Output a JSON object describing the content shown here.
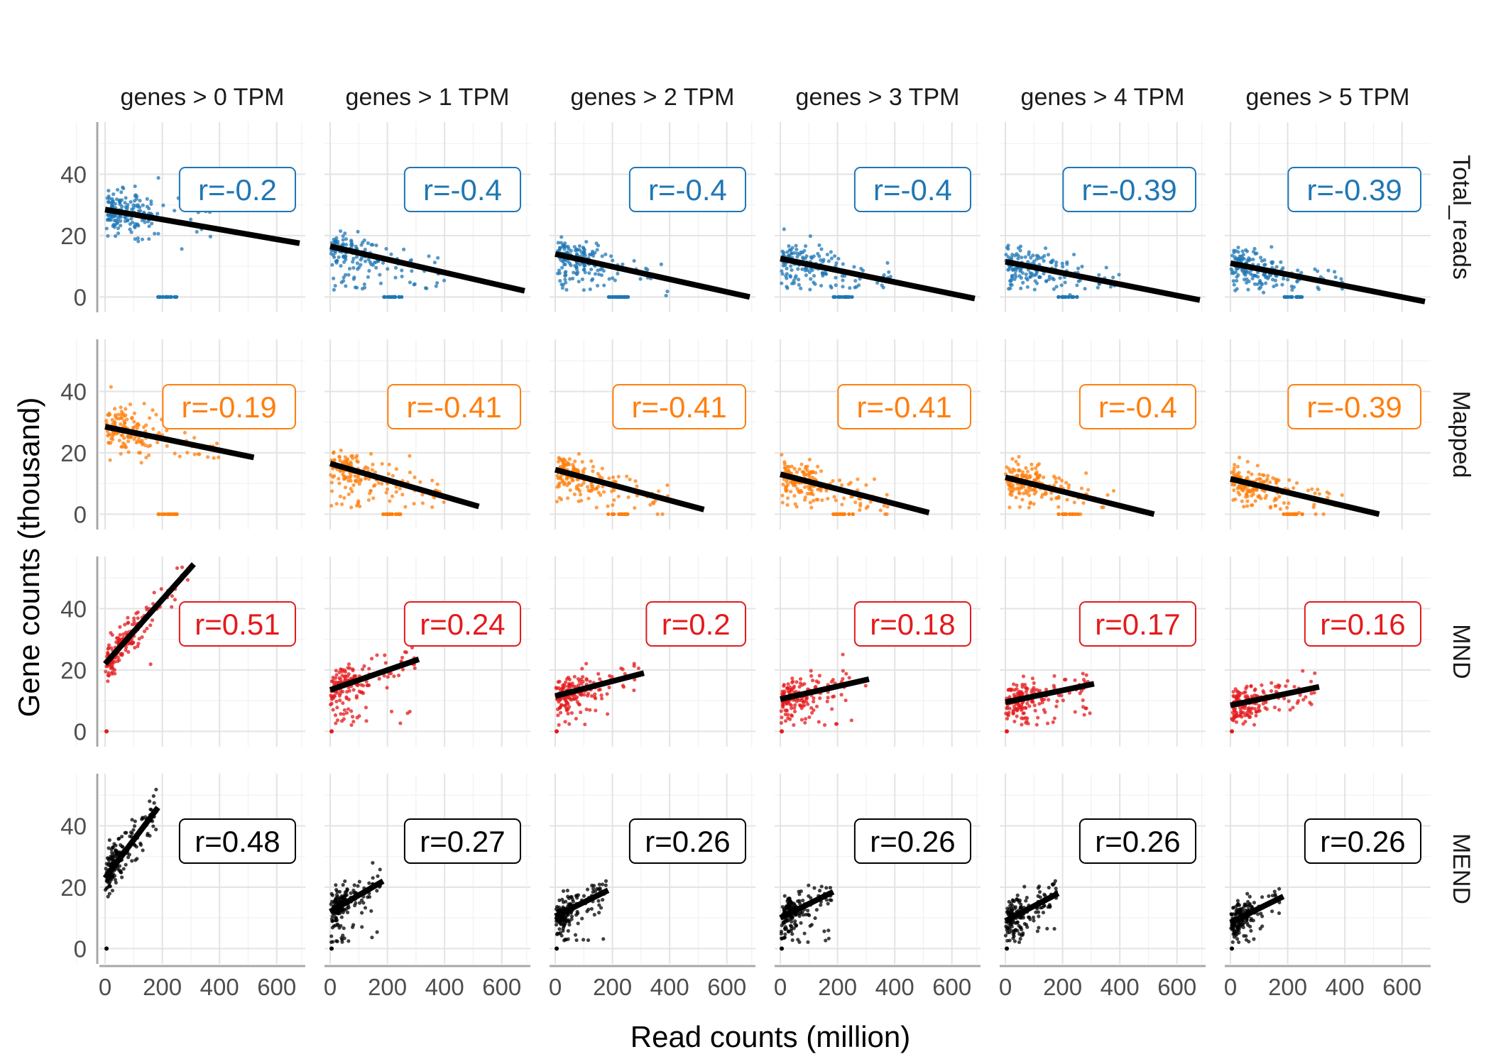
{
  "chart_data": {
    "type": "scatter",
    "xlabel": "Read counts (million)",
    "ylabel": "Gene counts (thousand)",
    "xlim": [
      -20,
      700
    ],
    "ylim": [
      -5,
      57
    ],
    "x_ticks": [
      0,
      200,
      400,
      600
    ],
    "y_ticks": [
      0,
      20,
      40
    ],
    "grid": true,
    "columns": [
      "genes > 0 TPM",
      "genes > 1 TPM",
      "genes > 2 TPM",
      "genes > 3 TPM",
      "genes > 4 TPM",
      "genes > 5 TPM"
    ],
    "rows": [
      {
        "name": "Total_reads",
        "color": "#1f77b4",
        "xmax": 400,
        "r": [
          "r=-0.2",
          "r=-0.4",
          "r=-0.4",
          "r=-0.4",
          "r=-0.39",
          "r=-0.39"
        ],
        "fit": [
          [
            28.5,
            17.5
          ],
          [
            16.5,
            2
          ],
          [
            14,
            0
          ],
          [
            12.5,
            -0.5
          ],
          [
            11.5,
            -1
          ],
          [
            11,
            -1.5
          ]
        ],
        "fit_xmax": [
          680,
          680,
          680,
          680,
          680,
          680
        ]
      },
      {
        "name": "Mapped",
        "color": "#ff7f0e",
        "xmax": 400,
        "r": [
          "r=-0.19",
          "r=-0.41",
          "r=-0.41",
          "r=-0.41",
          "r=-0.4",
          "r=-0.39"
        ],
        "fit": [
          [
            28.5,
            18.5
          ],
          [
            16.5,
            2.5
          ],
          [
            14.5,
            1.5
          ],
          [
            13,
            0.5
          ],
          [
            12,
            0
          ],
          [
            11.5,
            0
          ]
        ],
        "fit_xmax": [
          520,
          520,
          520,
          520,
          520,
          520
        ]
      },
      {
        "name": "MND",
        "color": "#e41a1c",
        "xmax": 300,
        "r": [
          "r=0.51",
          "r=0.24",
          "r=0.2",
          "r=0.18",
          "r=0.17",
          "r=0.16"
        ],
        "fit": [
          [
            22,
            54.5
          ],
          [
            13.5,
            23.5
          ],
          [
            11.5,
            19
          ],
          [
            10.5,
            17
          ],
          [
            9.5,
            15.5
          ],
          [
            8.5,
            14.5
          ]
        ],
        "fit_xmax": [
          310,
          310,
          310,
          310,
          310,
          310
        ]
      },
      {
        "name": "MEND",
        "color": "#000000",
        "xmax": 180,
        "r": [
          "r=0.48",
          "r=0.27",
          "r=0.26",
          "r=0.26",
          "r=0.26",
          "r=0.26"
        ],
        "fit": [
          [
            23,
            46
          ],
          [
            12,
            22
          ],
          [
            10.5,
            19
          ],
          [
            10,
            18.5
          ],
          [
            9,
            18
          ],
          [
            8.5,
            17
          ]
        ],
        "fit_xmax": [
          185,
          185,
          185,
          185,
          185,
          185
        ]
      }
    ]
  }
}
